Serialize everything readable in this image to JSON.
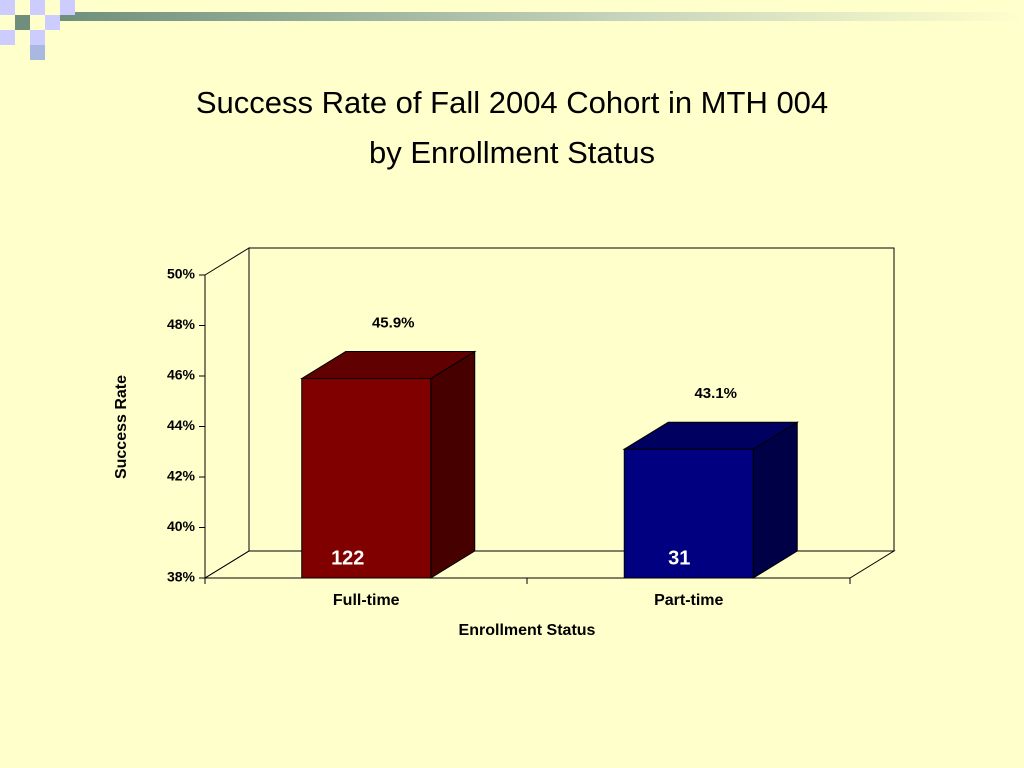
{
  "chart_data": {
    "type": "bar3d",
    "title": [
      "Success Rate of Fall 2004 Cohort in MTH 004",
      "by Enrollment Status"
    ],
    "categories": [
      "Full-time",
      "Part-time"
    ],
    "values": [
      45.9,
      43.1
    ],
    "value_labels": [
      "45.9%",
      "43.1%"
    ],
    "counts": [
      122,
      31
    ],
    "colors": [
      "#800000",
      "#000080"
    ],
    "xlabel": "Enrollment Status",
    "ylabel": "Success Rate",
    "ylim": [
      38,
      50
    ],
    "yticks": [
      {
        "value": 38,
        "label": "38%"
      },
      {
        "value": 40,
        "label": "40%"
      },
      {
        "value": 42,
        "label": "42%"
      },
      {
        "value": 44,
        "label": "44%"
      },
      {
        "value": 46,
        "label": "46%"
      },
      {
        "value": 48,
        "label": "48%"
      },
      {
        "value": 50,
        "label": "50%"
      }
    ]
  }
}
